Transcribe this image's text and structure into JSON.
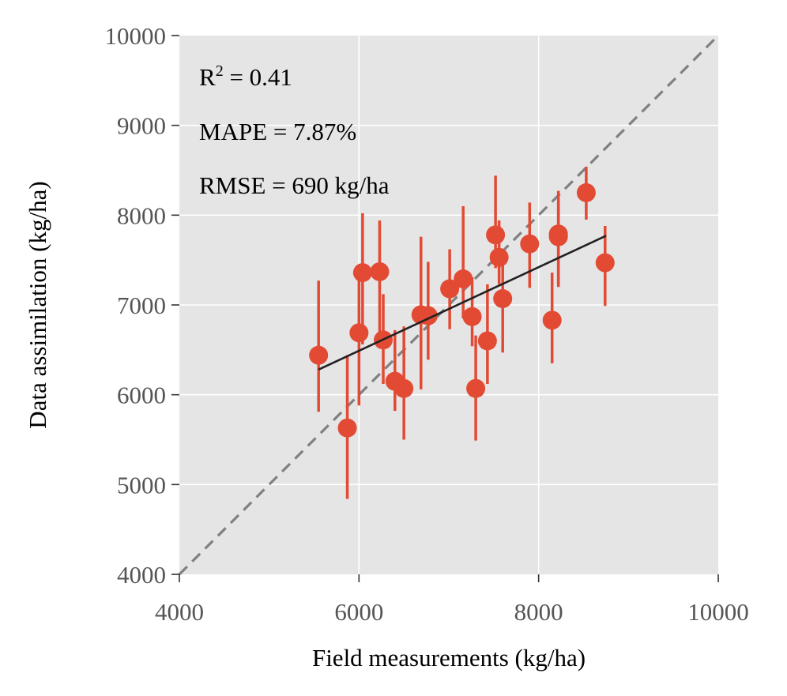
{
  "chart_data": {
    "type": "scatter",
    "xlabel": "Field measurements (kg/ha)",
    "ylabel": "Data assimilation (kg/ha)",
    "xlim": [
      4000,
      10000
    ],
    "ylim": [
      4000,
      10000
    ],
    "x_ticks": [
      4000,
      6000,
      8000,
      10000
    ],
    "y_ticks": [
      4000,
      5000,
      6000,
      7000,
      8000,
      9000,
      10000
    ],
    "x_tick_labels": [
      "4000",
      "6000",
      "8000",
      "10000"
    ],
    "y_tick_labels": [
      "4000",
      "5000",
      "6000",
      "7000",
      "8000",
      "9000",
      "10000"
    ],
    "grid": true,
    "stats": {
      "r2_label": "R",
      "r2_sup": "2",
      "r2_value": " = 0.41",
      "mape": "MAPE = 7.87%",
      "rmse": "RMSE = 690 kg/ha"
    },
    "one_to_one_line": {
      "from": [
        4000,
        4000
      ],
      "to": [
        10000,
        10000
      ]
    },
    "fit_line": {
      "from": [
        5550,
        6280
      ],
      "to": [
        8750,
        7770
      ]
    },
    "points": [
      {
        "x": 5550,
        "y": 6440,
        "err_low": 5810,
        "err_high": 7270
      },
      {
        "x": 5870,
        "y": 5630,
        "err_low": 4840,
        "err_high": 6440
      },
      {
        "x": 6000,
        "y": 6690,
        "err_low": 5880,
        "err_high": 7400
      },
      {
        "x": 6040,
        "y": 7360,
        "err_low": 6560,
        "err_high": 8020
      },
      {
        "x": 6230,
        "y": 7370,
        "err_low": 6660,
        "err_high": 7940
      },
      {
        "x": 6270,
        "y": 6610,
        "err_low": 6120,
        "err_high": 7120
      },
      {
        "x": 6400,
        "y": 6150,
        "err_low": 5820,
        "err_high": 6720
      },
      {
        "x": 6500,
        "y": 6070,
        "err_low": 5500,
        "err_high": 6760
      },
      {
        "x": 6690,
        "y": 6890,
        "err_low": 6060,
        "err_high": 7760
      },
      {
        "x": 6770,
        "y": 6880,
        "err_low": 6390,
        "err_high": 7480
      },
      {
        "x": 7010,
        "y": 7180,
        "err_low": 6730,
        "err_high": 7620
      },
      {
        "x": 7160,
        "y": 7290,
        "err_low": 6850,
        "err_high": 8100
      },
      {
        "x": 7260,
        "y": 6870,
        "err_low": 6540,
        "err_high": 7310
      },
      {
        "x": 7300,
        "y": 6070,
        "err_low": 5490,
        "err_high": 6660
      },
      {
        "x": 7430,
        "y": 6600,
        "err_low": 6120,
        "err_high": 7230
      },
      {
        "x": 7520,
        "y": 7780,
        "err_low": 7410,
        "err_high": 8440
      },
      {
        "x": 7560,
        "y": 7530,
        "err_low": 7230,
        "err_high": 7940
      },
      {
        "x": 7600,
        "y": 7070,
        "err_low": 6470,
        "err_high": 7460
      },
      {
        "x": 7900,
        "y": 7680,
        "err_low": 7190,
        "err_high": 8140
      },
      {
        "x": 8150,
        "y": 6830,
        "err_low": 6350,
        "err_high": 7360
      },
      {
        "x": 8220,
        "y": 7760,
        "err_low": 7200,
        "err_high": 8270
      },
      {
        "x": 8220,
        "y": 7790,
        "err_low": 7220,
        "err_high": 8160
      },
      {
        "x": 8530,
        "y": 8250,
        "err_low": 7950,
        "err_high": 8540
      },
      {
        "x": 8740,
        "y": 7470,
        "err_low": 6990,
        "err_high": 7880
      }
    ],
    "colors": {
      "panel_bg": "#e5e5e5",
      "grid": "#ffffff",
      "points": "#e24a33",
      "fit_line": "#222222",
      "one_to_one": "#808080",
      "tick_text": "#555555",
      "tick_marks": "#333333"
    }
  }
}
